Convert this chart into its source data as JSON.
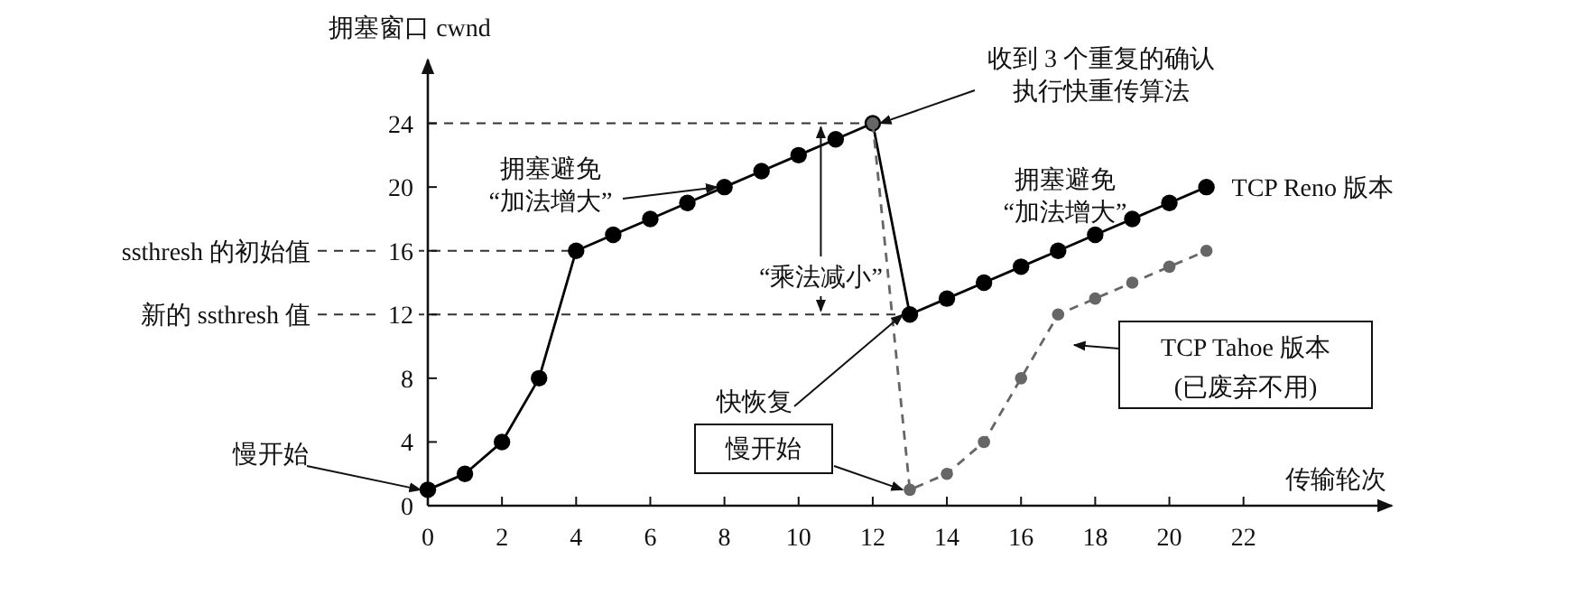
{
  "chart_data": {
    "type": "line",
    "xlabel": "传输轮次",
    "ylabel": "拥塞窗口 cwnd",
    "xlim": [
      0,
      26
    ],
    "ylim": [
      0,
      28
    ],
    "xticks": [
      0,
      2,
      4,
      6,
      8,
      10,
      12,
      14,
      16,
      18,
      20,
      22
    ],
    "yticks": [
      0,
      4,
      8,
      12,
      16,
      20,
      24
    ],
    "grid": false,
    "marker": "circle",
    "series": [
      {
        "name": "TCP Reno 版本",
        "color": "#000000",
        "line_style": "solid",
        "x": [
          0,
          1,
          2,
          3,
          4,
          5,
          6,
          7,
          8,
          9,
          10,
          11,
          12,
          13,
          14,
          15,
          16,
          17,
          18,
          19,
          20,
          21
        ],
        "values": [
          1,
          2,
          4,
          8,
          16,
          17,
          18,
          19,
          20,
          21,
          22,
          23,
          24,
          12,
          13,
          14,
          15,
          16,
          17,
          18,
          19,
          20
        ]
      },
      {
        "name": "TCP Tahoe 版本",
        "color": "#666666",
        "line_style": "dashed",
        "x": [
          12,
          13,
          14,
          15,
          16,
          17,
          18,
          19,
          20,
          21
        ],
        "values": [
          24,
          1,
          2,
          4,
          8,
          12,
          13,
          14,
          15,
          16
        ]
      }
    ],
    "ref_lines": [
      {
        "axis": "y",
        "value": 24,
        "label": null,
        "line_style": "dashed"
      },
      {
        "axis": "y",
        "value": 16,
        "label": "ssthresh 的初始值",
        "line_style": "dashed"
      },
      {
        "axis": "y",
        "value": 12,
        "label": "新的 ssthresh 值",
        "line_style": "dashed"
      }
    ],
    "annotations": [
      {
        "text": "慢开始",
        "x": 0,
        "y": 1
      },
      {
        "text": "拥塞避免",
        "x": 8,
        "y": 20
      },
      "“加法增大”",
      {
        "text": "“乘法减小”",
        "x": 10.6,
        "y": 24
      },
      {
        "text": "收到 3 个重复的确认",
        "x": 12,
        "y": 24
      },
      "执行快重传算法",
      "拥塞避免",
      "“加法增大”",
      {
        "text": "快恢复",
        "x": 13,
        "y": 12
      },
      {
        "text": "慢开始",
        "x": 13,
        "y": 1
      },
      "(已废弃不用)"
    ]
  }
}
